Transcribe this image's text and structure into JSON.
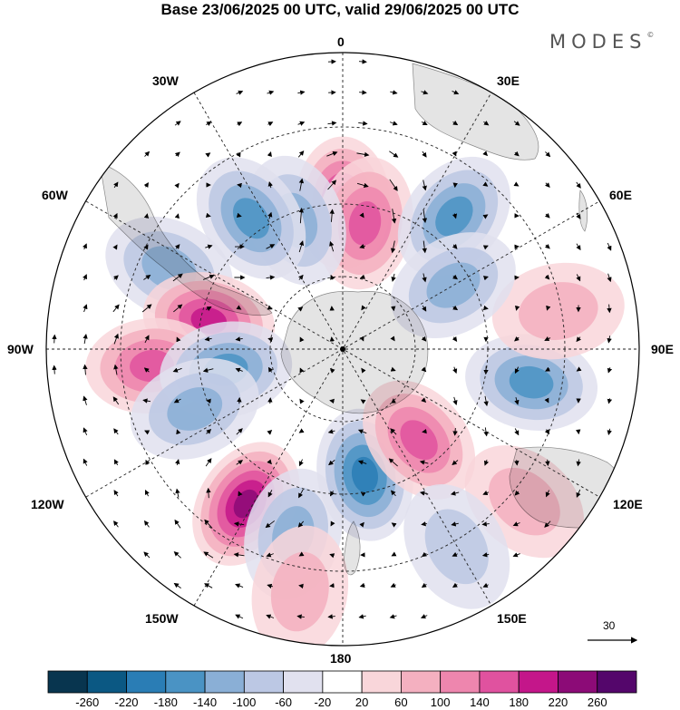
{
  "title": "Base 23/06/2025 00 UTC, valid 29/06/2025 00 UTC",
  "brand": "MODES",
  "brand_mark": "©",
  "longitude_labels": {
    "top": "0",
    "top_left": "30W",
    "top_right": "30E",
    "upper_left": "60W",
    "upper_right": "60E",
    "left": "90W",
    "right": "90E",
    "lower_left": "120W",
    "lower_right": "120E",
    "bottom_left": "150W",
    "bottom_right": "150E",
    "bottom": "180"
  },
  "reference_vector": {
    "label": "30",
    "icon": "arrow-right-icon"
  },
  "colorbar": {
    "labels": [
      "-260",
      "-220",
      "-180",
      "-140",
      "-100",
      "-60",
      "-20",
      "20",
      "60",
      "100",
      "140",
      "180",
      "220",
      "260"
    ],
    "colors": [
      "#08354f",
      "#0b5883",
      "#2a7db5",
      "#4a93c4",
      "#8aafd6",
      "#bcc8e4",
      "#e1e1ef",
      "#ffffff",
      "#f9d6da",
      "#f4b0c0",
      "#ee86ae",
      "#e0529f",
      "#c4168a",
      "#8c0b77",
      "#54066b"
    ]
  },
  "map": {
    "projection": "south-polar-stereographic",
    "land_color": "#e6e6e6",
    "anomaly_cells": [
      {
        "lon": 0,
        "lat": -58,
        "val": 190
      },
      {
        "lon": 10,
        "lat": -62,
        "val": 150
      },
      {
        "lon": 40,
        "lat": -52,
        "val": -150
      },
      {
        "lon": -20,
        "lat": -60,
        "val": -120
      },
      {
        "lon": -35,
        "lat": -55,
        "val": -140
      },
      {
        "lon": -65,
        "lat": -48,
        "val": -120
      },
      {
        "lon": -78,
        "lat": -60,
        "val": 200
      },
      {
        "lon": -95,
        "lat": -48,
        "val": 170
      },
      {
        "lon": -100,
        "lat": -64,
        "val": -140
      },
      {
        "lon": -112,
        "lat": -55,
        "val": -120
      },
      {
        "lon": -148,
        "lat": -50,
        "val": 230
      },
      {
        "lon": -165,
        "lat": -48,
        "val": -120
      },
      {
        "lon": 170,
        "lat": -62,
        "val": -200
      },
      {
        "lon": 140,
        "lat": -64,
        "val": 150
      },
      {
        "lon": 100,
        "lat": -48,
        "val": -150
      },
      {
        "lon": 80,
        "lat": -42,
        "val": 60
      },
      {
        "lon": 60,
        "lat": -62,
        "val": -100
      },
      {
        "lon": 130,
        "lat": -38,
        "val": 60
      },
      {
        "lon": 150,
        "lat": -40,
        "val": -60
      },
      {
        "lon": -170,
        "lat": -36,
        "val": 60
      }
    ]
  }
}
